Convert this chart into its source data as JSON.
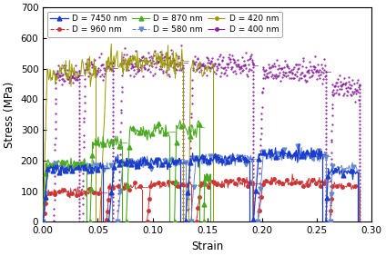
{
  "xlabel": "Strain",
  "ylabel": "Stress (MPa)",
  "xlim": [
    0.0,
    0.3
  ],
  "ylim": [
    0,
    700
  ],
  "xticks": [
    0.0,
    0.05,
    0.1,
    0.15,
    0.2,
    0.25,
    0.3
  ],
  "yticks": [
    0,
    100,
    200,
    300,
    400,
    500,
    600,
    700
  ],
  "series": [
    {
      "label": "D = 7450 nm",
      "color": "#1a3ccc",
      "linestyle": "-",
      "marker": "^",
      "markersize": 3.5
    },
    {
      "label": "D = 960 nm",
      "color": "#cc3333",
      "linestyle": "--",
      "marker": "o",
      "markersize": 2.5
    },
    {
      "label": "D = 870 nm",
      "color": "#4aaa20",
      "linestyle": "-",
      "marker": "^",
      "markersize": 3.5
    },
    {
      "label": "D = 580 nm",
      "color": "#6688cc",
      "linestyle": "--",
      "marker": "v",
      "markersize": 3.5
    },
    {
      "label": "D = 420 nm",
      "color": "#999900",
      "linestyle": "-.",
      "marker": "o",
      "markersize": 2.5
    },
    {
      "label": "D = 400 nm",
      "color": "#882299",
      "linestyle": "-.",
      "marker": "o",
      "markersize": 2.5
    }
  ],
  "legend_fontsize": 6.5,
  "axis_fontsize": 8.5,
  "tick_fontsize": 7.5,
  "fig_width": 4.24,
  "fig_height": 2.82,
  "dpi": 100
}
